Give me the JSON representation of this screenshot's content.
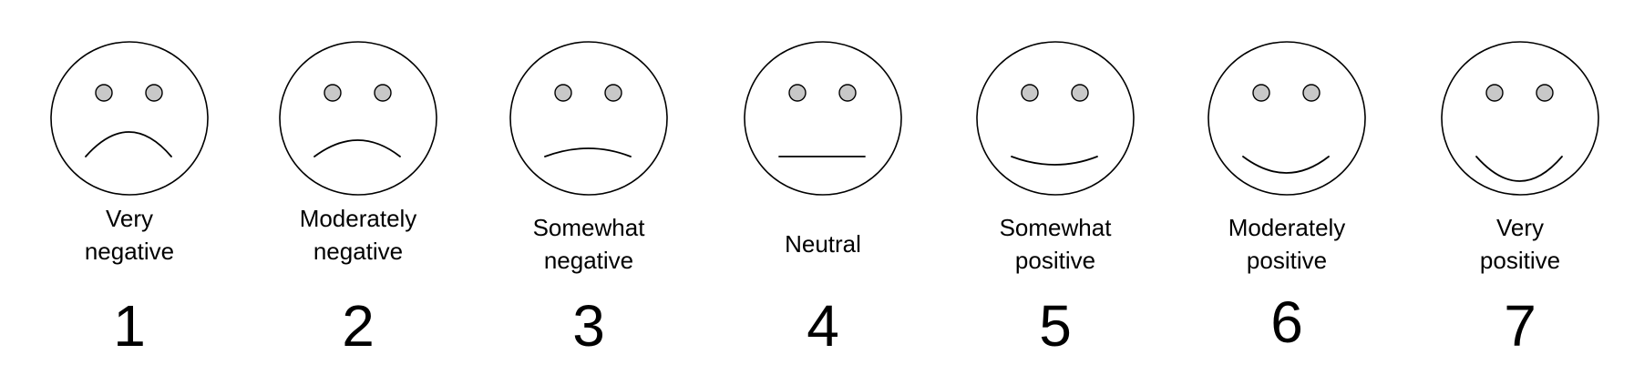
{
  "scale": {
    "items": [
      {
        "label_lines": [
          "Very",
          "negative"
        ],
        "number": "1",
        "expression": "very-sad-face",
        "mouth_curve": -3
      },
      {
        "label_lines": [
          "Moderately",
          "negative"
        ],
        "number": "2",
        "expression": "sad-face",
        "mouth_curve": -2
      },
      {
        "label_lines": [
          "Somewhat",
          "negative"
        ],
        "number": "3",
        "expression": "slightly-sad-face",
        "mouth_curve": -1
      },
      {
        "label_lines": [
          "Neutral"
        ],
        "number": "4",
        "expression": "neutral-face",
        "mouth_curve": 0
      },
      {
        "label_lines": [
          "Somewhat",
          "positive"
        ],
        "number": "5",
        "expression": "slightly-happy-face",
        "mouth_curve": 1
      },
      {
        "label_lines": [
          "Moderately",
          "positive"
        ],
        "number": "6",
        "expression": "happy-face",
        "mouth_curve": 2
      },
      {
        "label_lines": [
          "Very",
          "positive"
        ],
        "number": "7",
        "expression": "very-happy-face",
        "mouth_curve": 3
      }
    ],
    "colors": {
      "face_fill": "#ffffff",
      "outline": "#000000",
      "eye_fill": "#c8c8c8",
      "text": "#000000"
    }
  }
}
